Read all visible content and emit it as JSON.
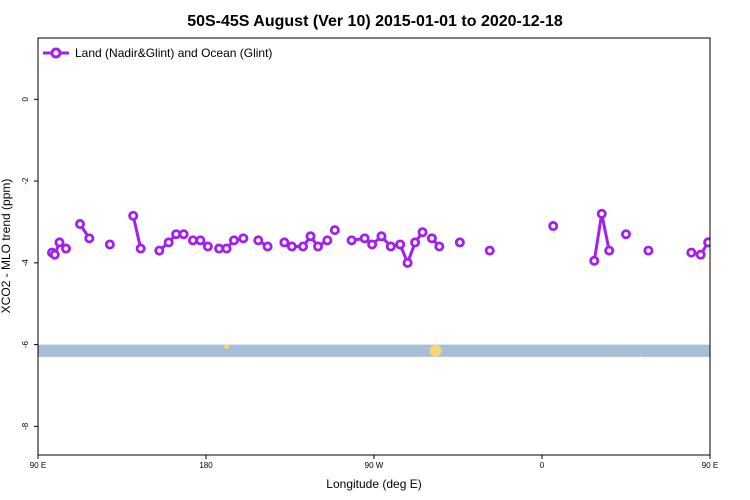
{
  "chart_data": {
    "type": "line",
    "title": "50S-45S August (Ver 10)   2015-01-01 to 2020-12-18",
    "xlabel": "Longitude (deg E)",
    "ylabel": "XCO2 - MLO trend (ppm)",
    "xlim": [
      90,
      450
    ],
    "ylim": [
      -8.7,
      1.5
    ],
    "x_ticks": [
      {
        "value": 90,
        "label": "90 E"
      },
      {
        "value": 180,
        "label": "180"
      },
      {
        "value": 270,
        "label": "90 W"
      },
      {
        "value": 360,
        "label": "0"
      },
      {
        "value": 450,
        "label": "90 E"
      },
      {
        "value": 540,
        "label": "180"
      }
    ],
    "y_ticks": [
      {
        "value": 0,
        "label": "0"
      },
      {
        "value": -2,
        "label": "-2"
      },
      {
        "value": -4,
        "label": "-4"
      },
      {
        "value": -6,
        "label": "-6"
      },
      {
        "value": -8,
        "label": "-8"
      }
    ],
    "legend": {
      "position": "top-left"
    },
    "colors": {
      "series": "#a020f0",
      "land_band": "#a8bed8",
      "land_blob": "#f5d873"
    },
    "land_band": {
      "y_from": -6.3,
      "y_to": -6.0
    },
    "land_blobs": [
      {
        "x": 191,
        "y": -6.05,
        "size": 2
      },
      {
        "x": 303,
        "y": -6.15,
        "size": 5
      },
      {
        "x": 401,
        "y": -6.15,
        "size": 0.6
      },
      {
        "x": 413,
        "y": -6.25,
        "size": 0.6
      },
      {
        "x": 535,
        "y": -6.05,
        "size": 2
      }
    ],
    "series": [
      {
        "name": "Land (Nadir&Glint) and Ocean (Glint)",
        "segments": [
          {
            "x": [
              97.5,
              99,
              101.5,
              105
            ],
            "y": [
              -3.75,
              -3.8,
              -3.5,
              -3.65
            ]
          },
          {
            "x": [
              112.5,
              117.5
            ],
            "y": [
              -3.05,
              -3.4
            ]
          },
          {
            "x": [
              128.5
            ],
            "y": [
              -3.55
            ]
          },
          {
            "x": [
              141,
              145
            ],
            "y": [
              -2.85,
              -3.65
            ]
          },
          {
            "x": [
              155,
              160,
              164,
              168
            ],
            "y": [
              -3.7,
              -3.5,
              -3.3,
              -3.3
            ]
          },
          {
            "x": [
              173,
              177,
              181
            ],
            "y": [
              -3.45,
              -3.45,
              -3.6
            ]
          },
          {
            "x": [
              187,
              191,
              195,
              200
            ],
            "y": [
              -3.65,
              -3.65,
              -3.45,
              -3.4
            ]
          },
          {
            "x": [
              208,
              213
            ],
            "y": [
              -3.45,
              -3.6
            ]
          },
          {
            "x": [
              222,
              226,
              232,
              236,
              240,
              245
            ],
            "y": [
              -3.5,
              -3.6,
              -3.6,
              -3.35,
              -3.6,
              -3.45
            ]
          },
          {
            "x": [
              249
            ],
            "y": [
              -3.2
            ]
          },
          {
            "x": [
              258,
              265,
              269,
              274,
              279,
              284,
              288,
              292,
              296
            ],
            "y": [
              -3.45,
              -3.4,
              -3.55,
              -3.35,
              -3.6,
              -3.55,
              -4.0,
              -3.5,
              -3.25
            ]
          },
          {
            "x": [
              301,
              305
            ],
            "y": [
              -3.4,
              -3.6
            ]
          },
          {
            "x": [
              316
            ],
            "y": [
              -3.5
            ]
          },
          {
            "x": [
              332
            ],
            "y": [
              -3.7
            ]
          },
          {
            "x": [
              366
            ],
            "y": [
              -3.1
            ]
          },
          {
            "x": [
              388,
              392,
              396
            ],
            "y": [
              -3.95,
              -2.8,
              -3.7
            ]
          },
          {
            "x": [
              405
            ],
            "y": [
              -3.3
            ]
          },
          {
            "x": [
              417
            ],
            "y": [
              -3.7
            ]
          },
          {
            "x": [
              440,
              445,
              449,
              453,
              458
            ],
            "y": [
              -3.75,
              -3.8,
              -3.5,
              -3.6,
              -3.05
            ]
          }
        ]
      }
    ]
  }
}
